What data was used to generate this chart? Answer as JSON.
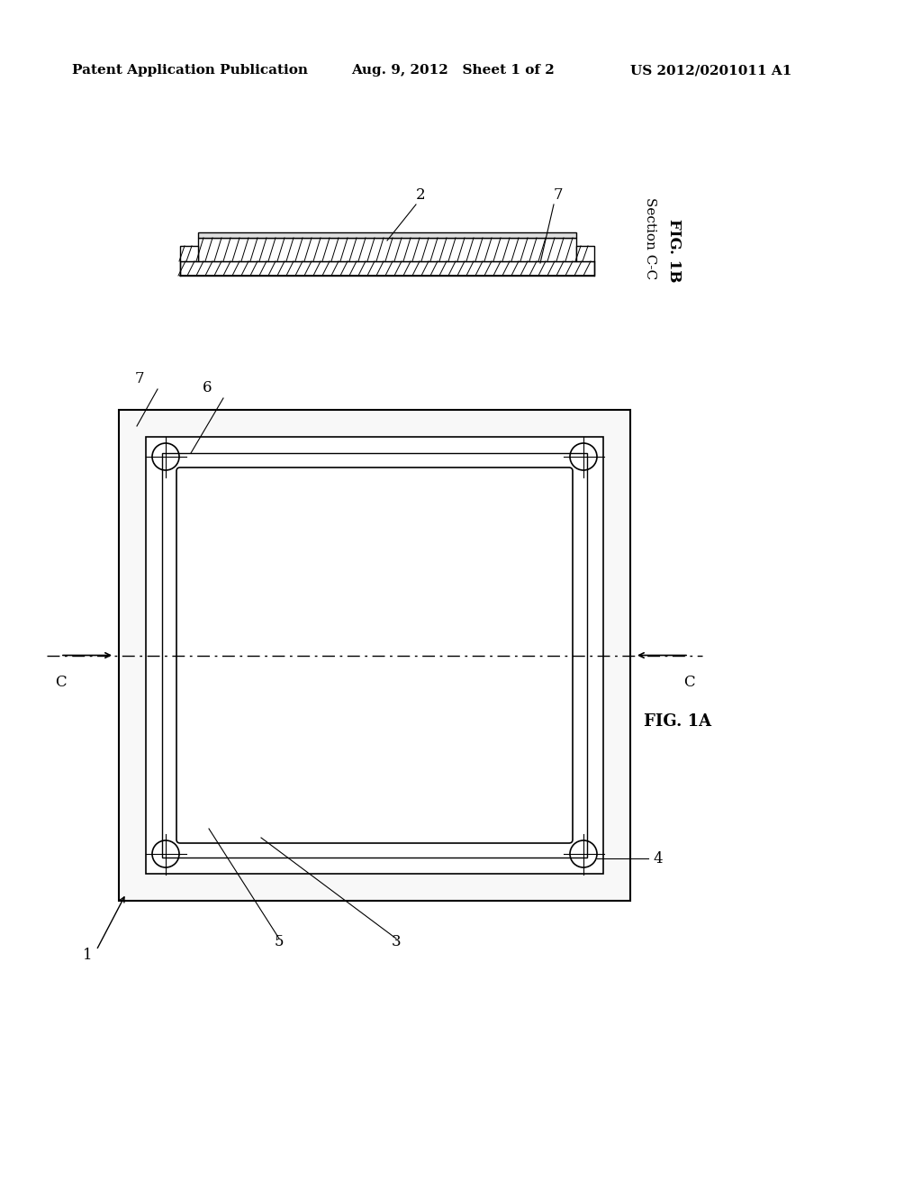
{
  "bg_color": "#ffffff",
  "header_left": "Patent Application Publication",
  "header_mid": "Aug. 9, 2012   Sheet 1 of 2",
  "header_right": "US 2012/0201011 A1",
  "header_fontsize": 11,
  "fig1b_label": "FIG. 1B",
  "fig1b_section": "Section C-C",
  "fig1a_label": "FIG. 1A",
  "label_2": "2",
  "label_7_top": "7",
  "label_7_main": "7",
  "label_6": "6",
  "label_5": "5",
  "label_3": "3",
  "label_4": "4",
  "label_1": "1",
  "label_C_left": "C",
  "label_C_right": "C"
}
